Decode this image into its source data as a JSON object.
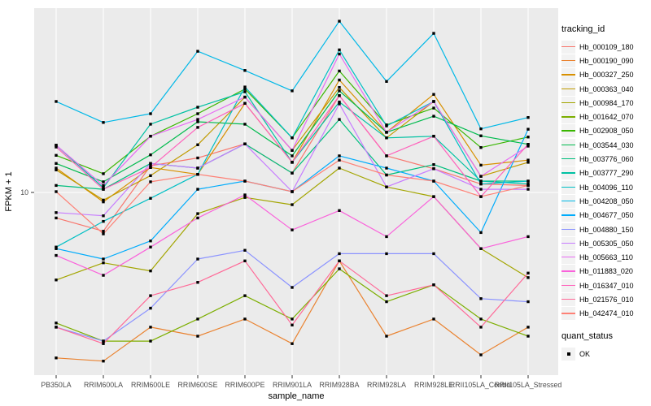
{
  "figure": {
    "y_axis": {
      "title": "FPKM + 1",
      "tick_labels": [
        "10"
      ]
    },
    "x_axis": {
      "title": "sample_name"
    },
    "legend": {
      "tracking_title": "tracking_id",
      "quant_title": "quant_status",
      "quant_items": [
        {
          "label": "OK"
        }
      ]
    }
  },
  "colors": {
    "panel_bg": "#EBEBEB",
    "grid": "#FFFFFF",
    "tick_mark": "#333333",
    "tick_text": "#4D4D4D",
    "axis_title_text": "#000000",
    "point": "#000000",
    "legend_key_bg": "#F2F2F2"
  },
  "chart_data": {
    "type": "line",
    "title": "",
    "xlabel": "sample_name",
    "ylabel": "FPKM + 1",
    "y_scale": "log10",
    "y_tick_values": [
      10
    ],
    "ylim": [
      1.05,
      97
    ],
    "grid": true,
    "legend_position": "right",
    "point_marker": "filled-black-square (quant_status = OK)",
    "categories": [
      "PB350LA",
      "RRIM600LA",
      "RRIM600LE",
      "RRIM600SE",
      "RRIM600PE",
      "RRIM901LA",
      "RRIM928BA",
      "RRIM928LA",
      "RRIM928LE",
      "RRII105LA_Control",
      "RRII105LA_Stressed"
    ],
    "series": [
      {
        "name": "Hb_000109_180",
        "color": "#F8766D",
        "values": [
          7.3,
          6.2,
          13.9,
          15.3,
          18.2,
          12.7,
          33.0,
          15.7,
          13.4,
          11.1,
          10.9
        ]
      },
      {
        "name": "Hb_000190_090",
        "color": "#EA8331",
        "values": [
          1.3,
          1.25,
          1.9,
          1.7,
          2.1,
          1.55,
          4.3,
          1.7,
          2.1,
          1.35,
          1.9
        ]
      },
      {
        "name": "Hb_000327_250",
        "color": "#D89000",
        "values": [
          13.5,
          8.9,
          13.6,
          12.5,
          30.0,
          14.5,
          40.0,
          21.0,
          33.5,
          14.0,
          14.9
        ]
      },
      {
        "name": "Hb_000363_040",
        "color": "#C09B00",
        "values": [
          13.2,
          9.1,
          12.3,
          18.0,
          32.4,
          16.8,
          36.5,
          19.6,
          30.7,
          12.2,
          14.5
        ]
      },
      {
        "name": "Hb_000984_170",
        "color": "#A3A500",
        "values": [
          3.4,
          4.2,
          3.8,
          7.7,
          9.4,
          8.6,
          13.5,
          10.7,
          9.5,
          5.0,
          3.5
        ]
      },
      {
        "name": "Hb_001642_070",
        "color": "#7CAE00",
        "values": [
          2.0,
          1.6,
          1.6,
          2.1,
          2.8,
          2.1,
          3.9,
          2.6,
          3.2,
          2.1,
          1.7
        ]
      },
      {
        "name": "Hb_002908_050",
        "color": "#39B600",
        "values": [
          15.8,
          12.6,
          20.0,
          26.4,
          35.8,
          19.6,
          44.7,
          23.0,
          28.3,
          17.4,
          19.8
        ]
      },
      {
        "name": "Hb_003544_030",
        "color": "#00BB4E",
        "values": [
          14.3,
          11.4,
          15.9,
          23.9,
          23.2,
          15.7,
          35.0,
          21.0,
          25.6,
          20.1,
          18.1
        ]
      },
      {
        "name": "Hb_003776_060",
        "color": "#00BF7D",
        "values": [
          10.9,
          10.4,
          14.3,
          13.5,
          18.2,
          12.7,
          24.6,
          12.4,
          14.1,
          11.5,
          11.5
        ]
      },
      {
        "name": "Hb_003777_290",
        "color": "#00C1A3",
        "values": [
          17.9,
          10.6,
          23.2,
          28.6,
          34.6,
          14.5,
          30.5,
          19.6,
          20.0,
          11.5,
          11.1
        ]
      },
      {
        "name": "Hb_004096_110",
        "color": "#00BFC4",
        "values": [
          5.1,
          7.0,
          9.3,
          12.5,
          36.7,
          19.6,
          58.0,
          22.7,
          30.7,
          11.1,
          11.5
        ]
      },
      {
        "name": "Hb_004208_050",
        "color": "#00B8E7",
        "values": [
          30.7,
          23.7,
          26.4,
          57.0,
          45.0,
          35.0,
          82.6,
          39.3,
          71.1,
          21.9,
          25.2
        ]
      },
      {
        "name": "Hb_004677_050",
        "color": "#00ACFC",
        "values": [
          5.0,
          4.4,
          5.5,
          10.4,
          11.5,
          10.1,
          15.7,
          13.5,
          11.5,
          6.1,
          21.8
        ]
      },
      {
        "name": "Hb_004880_150",
        "color": "#8B93FF",
        "values": [
          1.9,
          1.6,
          2.4,
          4.4,
          4.9,
          3.1,
          4.7,
          4.7,
          4.7,
          2.7,
          2.6
        ]
      },
      {
        "name": "Hb_005305_050",
        "color": "#C77CFF",
        "values": [
          7.8,
          7.5,
          14.3,
          13.5,
          18.2,
          10.1,
          29.8,
          10.7,
          13.4,
          10.4,
          10.4
        ]
      },
      {
        "name": "Hb_005663_110",
        "color": "#E76BF3",
        "values": [
          17.9,
          10.9,
          20.0,
          24.6,
          32.4,
          16.8,
          55.1,
          21.0,
          30.7,
          12.2,
          17.7
        ]
      },
      {
        "name": "Hb_011883_020",
        "color": "#FA62DB",
        "values": [
          4.6,
          3.6,
          5.1,
          7.3,
          9.7,
          6.3,
          8.0,
          5.8,
          9.5,
          5.0,
          5.8
        ]
      },
      {
        "name": "Hb_016347_010",
        "color": "#FF62BC",
        "values": [
          17.5,
          10.4,
          13.6,
          22.3,
          30.0,
          14.5,
          33.0,
          15.7,
          20.0,
          9.5,
          18.1
        ]
      },
      {
        "name": "Hb_021576_010",
        "color": "#FF6A98",
        "values": [
          1.9,
          1.55,
          2.8,
          3.3,
          4.3,
          1.95,
          4.3,
          2.8,
          3.2,
          1.9,
          3.7
        ]
      },
      {
        "name": "Hb_042474_010",
        "color": "#FE8176",
        "values": [
          10.1,
          6.0,
          11.4,
          12.5,
          11.5,
          10.1,
          14.9,
          12.4,
          11.5,
          9.5,
          10.9
        ]
      }
    ]
  }
}
